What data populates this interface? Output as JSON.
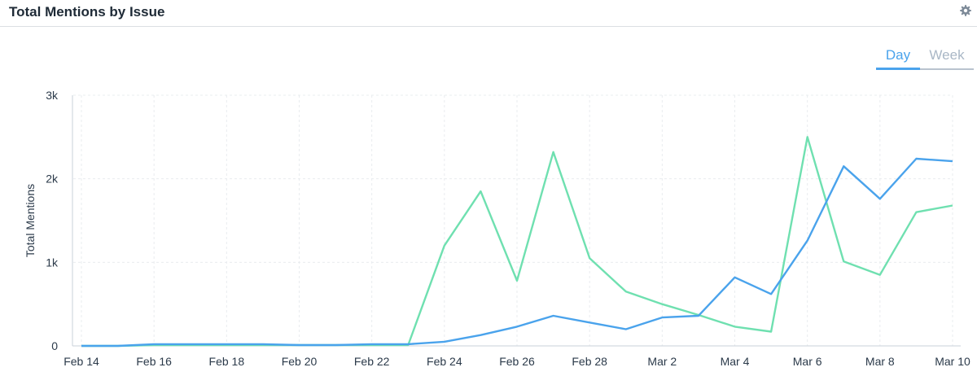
{
  "header": {
    "title": "Total Mentions by Issue",
    "settings_icon": "gear-icon"
  },
  "toggle": {
    "day_label": "Day",
    "week_label": "Week",
    "selected": "Day"
  },
  "colors": {
    "series_blue": "#4aa3ec",
    "series_green": "#6fe0b0",
    "active_tab": "#4aa3ec",
    "inactive_tab": "#a9b7c6"
  },
  "chart_data": {
    "type": "line",
    "title": "Total Mentions by Issue",
    "xlabel": "",
    "ylabel": "Total Mentions",
    "x": [
      "Feb 14",
      "Feb 15",
      "Feb 16",
      "Feb 17",
      "Feb 18",
      "Feb 19",
      "Feb 20",
      "Feb 21",
      "Feb 22",
      "Feb 23",
      "Feb 24",
      "Feb 25",
      "Feb 26",
      "Feb 27",
      "Feb 28",
      "Mar 1",
      "Mar 2",
      "Mar 3",
      "Mar 4",
      "Mar 5",
      "Mar 6",
      "Mar 7",
      "Mar 8",
      "Mar 9",
      "Mar 10"
    ],
    "x_tick_labels": [
      "Feb 14",
      "Feb 16",
      "Feb 18",
      "Feb 20",
      "Feb 22",
      "Feb 24",
      "Feb 26",
      "Feb 28",
      "Mar 2",
      "Mar 4",
      "Mar 6",
      "Mar 8",
      "Mar 10"
    ],
    "y_tick_labels": [
      "0",
      "1k",
      "2k",
      "3k"
    ],
    "ylim": [
      0,
      3000
    ],
    "grid": true,
    "legend": "none",
    "series": [
      {
        "color": "#6fe0b0",
        "values": [
          0,
          0,
          10,
          10,
          10,
          10,
          10,
          10,
          10,
          10,
          1200,
          1850,
          780,
          2320,
          1050,
          650,
          500,
          370,
          230,
          170,
          2500,
          1010,
          850,
          1600,
          1680
        ]
      },
      {
        "color": "#4aa3ec",
        "values": [
          0,
          0,
          20,
          20,
          20,
          20,
          10,
          10,
          20,
          20,
          50,
          130,
          230,
          360,
          280,
          200,
          340,
          360,
          820,
          620,
          1260,
          2150,
          1760,
          2240,
          2210
        ]
      }
    ]
  }
}
